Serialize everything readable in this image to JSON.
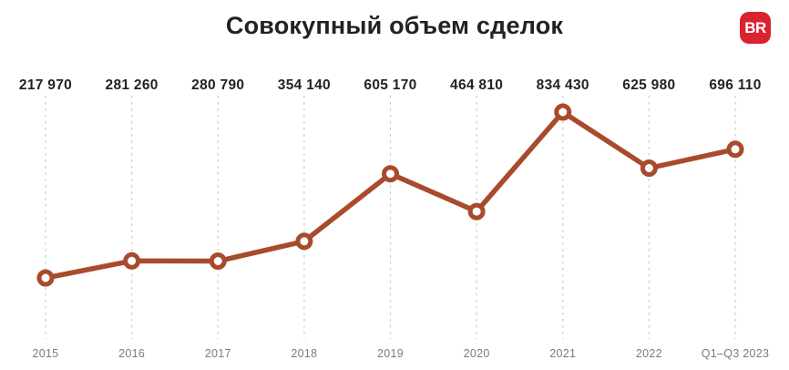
{
  "title": "Совокупный объем сделок",
  "logo": {
    "text": "BR",
    "background": "#D9232E",
    "text_color": "#FFFFFF"
  },
  "colors": {
    "background": "#FFFFFF",
    "title_text": "#222222",
    "value_text": "#232323",
    "year_text": "#7B7B7B",
    "gridline": "#C9C9C9",
    "line": "#A84B2D",
    "marker_fill": "#FFFFFF"
  },
  "chart_data": {
    "type": "line",
    "title": "Совокупный объем сделок",
    "categories": [
      "2015",
      "2016",
      "2017",
      "2018",
      "2019",
      "2020",
      "2021",
      "2022",
      "Q1–Q3 2023"
    ],
    "values": [
      217970,
      281260,
      280790,
      354140,
      605170,
      464810,
      834430,
      625980,
      696110
    ],
    "value_labels": [
      "217 970",
      "281 260",
      "280 790",
      "354 140",
      "605 170",
      "464 810",
      "834 430",
      "625 980",
      "696 110"
    ],
    "xlabel": "",
    "ylabel": "",
    "ylim": [
      217970,
      834430
    ],
    "grid": "vertical-dashed",
    "legend": "none",
    "markers": "open-circle"
  }
}
